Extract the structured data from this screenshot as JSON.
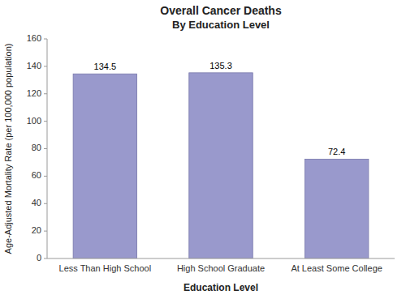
{
  "chart_data": {
    "type": "bar",
    "title": "Overall Cancer Deaths",
    "subtitle": "By Education Level",
    "xlabel": "Education Level",
    "ylabel": "Age-Adjusted Mortality Rate (per 100,000 population)",
    "categories": [
      "Less Than High School",
      "High School Graduate",
      "At Least Some College"
    ],
    "values": [
      134.5,
      135.3,
      72.4
    ],
    "color": "#9999cc",
    "ylim": [
      0,
      160
    ],
    "yticks": [
      0,
      20,
      40,
      60,
      80,
      100,
      120,
      140,
      160
    ],
    "grid": false,
    "data_labels": true
  }
}
